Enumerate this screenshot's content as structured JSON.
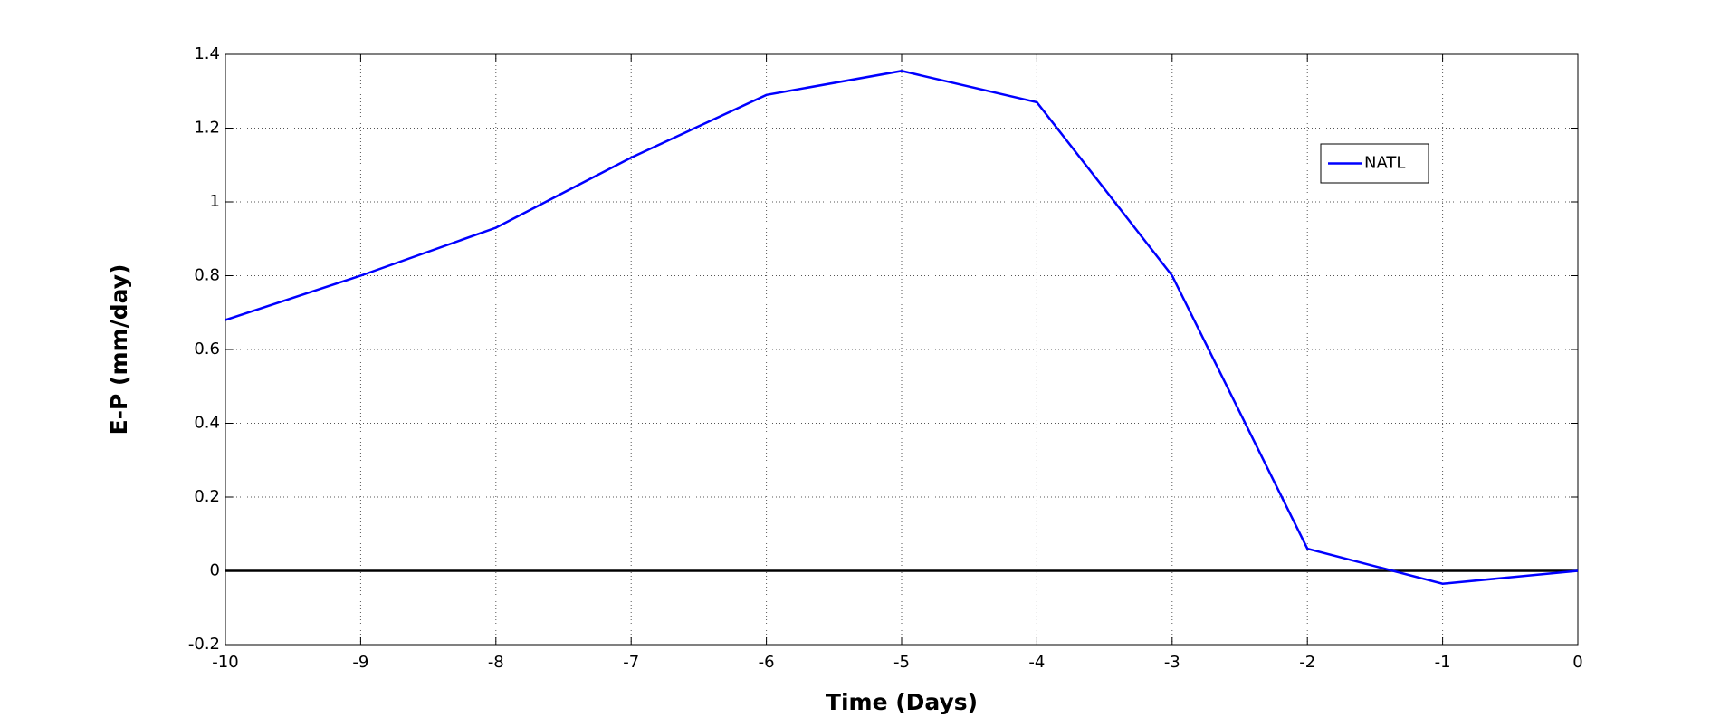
{
  "chart_data": {
    "type": "line",
    "x_label": "Time (Days)",
    "y_label": "E-P (mm/day)",
    "x": [
      -10,
      -9,
      -8,
      -7,
      -6,
      -5,
      -4,
      -3,
      -2,
      -1,
      0
    ],
    "series": [
      {
        "name": "NATL",
        "color": "#0000ff",
        "values": [
          0.68,
          0.8,
          0.93,
          1.12,
          1.29,
          1.355,
          1.27,
          0.8,
          0.06,
          -0.035,
          0.0
        ]
      }
    ],
    "xlim": [
      -10,
      0
    ],
    "xticks": [
      -10,
      -9,
      -8,
      -7,
      -6,
      -5,
      -4,
      -3,
      -2,
      -1,
      0
    ],
    "ylim": [
      -0.2,
      1.4
    ],
    "yticks": [
      -0.2,
      0,
      0.2,
      0.4,
      0.6,
      0.8,
      1,
      1.2,
      1.4
    ],
    "hline": 0,
    "grid": true,
    "legend": "upper right"
  }
}
